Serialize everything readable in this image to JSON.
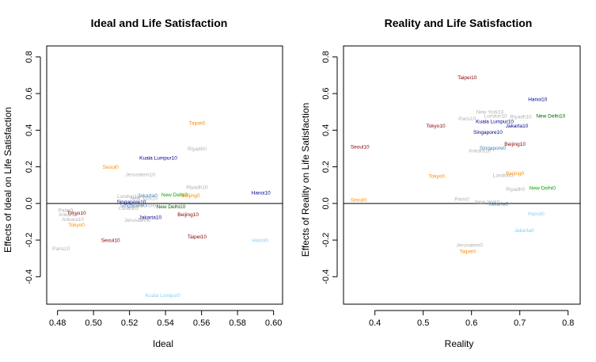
{
  "chart_data": [
    {
      "type": "scatter",
      "title": "Ideal and Life Satisfaction",
      "xlabel": "Ideal",
      "ylabel": "Effects of Ideal on Life Satisfaction",
      "xlim": [
        0.474,
        0.605
      ],
      "ylim": [
        -0.55,
        0.86
      ],
      "xticks": [
        0.48,
        0.5,
        0.52,
        0.54,
        0.56,
        0.58,
        0.6
      ],
      "xtick_labels": [
        "0.48",
        "0.50",
        "0.52",
        "0.54",
        "0.56",
        "0.58",
        "0.60"
      ],
      "yticks": [
        -0.4,
        -0.2,
        0.0,
        0.2,
        0.4,
        0.6,
        0.8
      ],
      "ytick_labels": [
        "-0.4",
        "-0.2",
        "0.0",
        "0.2",
        "0.4",
        "0.6",
        "0.8"
      ],
      "hline": 0,
      "points": [
        {
          "label": "Taipei0",
          "x": 0.5575,
          "y": 0.44,
          "color": "#ff8c00"
        },
        {
          "label": "Riyadh0",
          "x": 0.5575,
          "y": 0.3,
          "color": "#b0b0b0"
        },
        {
          "label": "Kuala Lumpur10",
          "x": 0.536,
          "y": 0.25,
          "color": "#00008b"
        },
        {
          "label": "Seoul0",
          "x": 0.5095,
          "y": 0.2,
          "color": "#ff8c00"
        },
        {
          "label": "Jerusalem10",
          "x": 0.526,
          "y": 0.16,
          "color": "#b0b0b0"
        },
        {
          "label": "Riyadh10",
          "x": 0.5575,
          "y": 0.09,
          "color": "#b0b0b0"
        },
        {
          "label": "Hanoi10",
          "x": 0.593,
          "y": 0.06,
          "color": "#00008b"
        },
        {
          "label": "London10",
          "x": 0.5195,
          "y": 0.04,
          "color": "#b0b0b0"
        },
        {
          "label": "Jakarta0",
          "x": 0.53,
          "y": 0.045,
          "color": "#4682b4"
        },
        {
          "label": "New Delhi0",
          "x": 0.545,
          "y": 0.05,
          "color": "#00aa00"
        },
        {
          "label": "Beijing0",
          "x": 0.554,
          "y": 0.045,
          "color": "#ff8c00"
        },
        {
          "label": "New York10",
          "x": 0.528,
          "y": 0.03,
          "color": "#b0b0b0"
        },
        {
          "label": "Singapore10",
          "x": 0.521,
          "y": 0.01,
          "color": "#00008b"
        },
        {
          "label": "Singapore0",
          "x": 0.522,
          "y": -0.01,
          "color": "#4682b4"
        },
        {
          "label": "New York0",
          "x": 0.529,
          "y": -0.01,
          "color": "#b0b0b0"
        },
        {
          "label": "New Delhi10",
          "x": 0.543,
          "y": -0.015,
          "color": "#006400"
        },
        {
          "label": "London0",
          "x": 0.5195,
          "y": -0.025,
          "color": "#b0b0b0"
        },
        {
          "label": "Paris0",
          "x": 0.4845,
          "y": -0.035,
          "color": "#b0b0b0"
        },
        {
          "label": "Tokyo10",
          "x": 0.4905,
          "y": -0.05,
          "color": "#8b0000"
        },
        {
          "label": "Ankara0",
          "x": 0.486,
          "y": -0.06,
          "color": "#b0b0b0"
        },
        {
          "label": "Beijing10",
          "x": 0.5525,
          "y": -0.06,
          "color": "#8b0000"
        },
        {
          "label": "Jakarta10",
          "x": 0.5315,
          "y": -0.075,
          "color": "#00008b"
        },
        {
          "label": "Ankara10",
          "x": 0.4885,
          "y": -0.085,
          "color": "#b0b0b0"
        },
        {
          "label": "Jerusalem0",
          "x": 0.5245,
          "y": -0.09,
          "color": "#b0b0b0"
        },
        {
          "label": "Tokyo0",
          "x": 0.4905,
          "y": -0.115,
          "color": "#ff8c00"
        },
        {
          "label": "Taipei10",
          "x": 0.5575,
          "y": -0.18,
          "color": "#8b0000"
        },
        {
          "label": "Seoul10",
          "x": 0.5095,
          "y": -0.2,
          "color": "#8b0000"
        },
        {
          "label": "Hanoi0",
          "x": 0.5925,
          "y": -0.2,
          "color": "#87cefa"
        },
        {
          "label": "Paris10",
          "x": 0.482,
          "y": -0.245,
          "color": "#b0b0b0"
        },
        {
          "label": "Kuala Lumpur0",
          "x": 0.5385,
          "y": -0.5,
          "color": "#87cefa"
        }
      ]
    },
    {
      "type": "scatter",
      "title": "Reality and Life Satisfaction",
      "xlabel": "Reality",
      "ylabel": "Effects of Reality on Life Satisfaction",
      "xlim": [
        0.335,
        0.825
      ],
      "ylim": [
        -0.55,
        0.86
      ],
      "xticks": [
        0.4,
        0.5,
        0.6,
        0.7,
        0.8
      ],
      "xtick_labels": [
        "0.4",
        "0.5",
        "0.6",
        "0.7",
        "0.8"
      ],
      "yticks": [
        -0.4,
        -0.2,
        0.0,
        0.2,
        0.4,
        0.6,
        0.8
      ],
      "ytick_labels": [
        "-0.4",
        "-0.2",
        "0.0",
        "0.2",
        "0.4",
        "0.6",
        "0.8"
      ],
      "hline": 0,
      "points": [
        {
          "label": "Taipei10",
          "x": 0.591,
          "y": 0.69,
          "color": "#8b0000"
        },
        {
          "label": "Hanoi10",
          "x": 0.737,
          "y": 0.57,
          "color": "#00008b"
        },
        {
          "label": "New York10",
          "x": 0.638,
          "y": 0.5,
          "color": "#b0b0b0"
        },
        {
          "label": "New Delhi10",
          "x": 0.764,
          "y": 0.48,
          "color": "#006400"
        },
        {
          "label": "Riyadh10",
          "x": 0.702,
          "y": 0.475,
          "color": "#b0b0b0"
        },
        {
          "label": "London10",
          "x": 0.65,
          "y": 0.48,
          "color": "#b0b0b0"
        },
        {
          "label": "Paris10",
          "x": 0.591,
          "y": 0.465,
          "color": "#b0b0b0"
        },
        {
          "label": "Kuala Lumpur10",
          "x": 0.648,
          "y": 0.45,
          "color": "#00008b"
        },
        {
          "label": "Tokyo10",
          "x": 0.526,
          "y": 0.425,
          "color": "#8b0000"
        },
        {
          "label": "Jakarta10",
          "x": 0.694,
          "y": 0.425,
          "color": "#00008b"
        },
        {
          "label": "Singapore10",
          "x": 0.634,
          "y": 0.39,
          "color": "#00008b"
        },
        {
          "label": "Seoul10",
          "x": 0.369,
          "y": 0.31,
          "color": "#8b0000"
        },
        {
          "label": "Beijing10",
          "x": 0.69,
          "y": 0.325,
          "color": "#8b0000"
        },
        {
          "label": "Singapore0",
          "x": 0.644,
          "y": 0.305,
          "color": "#4682b4"
        },
        {
          "label": "Ankara10",
          "x": 0.617,
          "y": 0.29,
          "color": "#b0b0b0"
        },
        {
          "label": "Tokyo0",
          "x": 0.528,
          "y": 0.15,
          "color": "#ff8c00"
        },
        {
          "label": "Beijing0",
          "x": 0.69,
          "y": 0.165,
          "color": "#ff8c00"
        },
        {
          "label": "London0",
          "x": 0.665,
          "y": 0.155,
          "color": "#b0b0b0"
        },
        {
          "label": "Riyadh0",
          "x": 0.691,
          "y": 0.08,
          "color": "#b0b0b0"
        },
        {
          "label": "New Delhi0",
          "x": 0.747,
          "y": 0.085,
          "color": "#00aa00"
        },
        {
          "label": "Seoul0",
          "x": 0.366,
          "y": 0.02,
          "color": "#ff8c00"
        },
        {
          "label": "Paris0",
          "x": 0.58,
          "y": 0.025,
          "color": "#b0b0b0"
        },
        {
          "label": "New York0",
          "x": 0.633,
          "y": 0.01,
          "color": "#b0b0b0"
        },
        {
          "label": "Jakarta0",
          "x": 0.656,
          "y": 0.0,
          "color": "#4682b4"
        },
        {
          "label": "Hanoi0",
          "x": 0.734,
          "y": -0.055,
          "color": "#87cefa"
        },
        {
          "label": "Jakarta0",
          "x": 0.709,
          "y": -0.145,
          "color": "#87cefa"
        },
        {
          "label": "Jerusalem0",
          "x": 0.596,
          "y": -0.225,
          "color": "#b0b0b0"
        },
        {
          "label": "Taipei0",
          "x": 0.592,
          "y": -0.26,
          "color": "#ff8c00"
        }
      ]
    }
  ]
}
